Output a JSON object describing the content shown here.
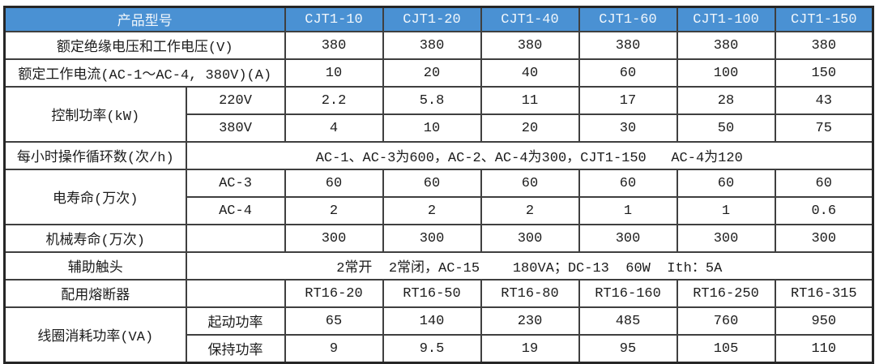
{
  "table": {
    "header": {
      "product_label": "产品型号",
      "models": [
        "CJT1-10",
        "CJT1-20",
        "CJT1-40",
        "CJT1-60",
        "CJT1-100",
        "CJT1-150"
      ]
    },
    "rows": {
      "insulation_voltage": {
        "label": "额定绝缘电压和工作电压(V)",
        "values": [
          "380",
          "380",
          "380",
          "380",
          "380",
          "380"
        ]
      },
      "rated_current": {
        "label": "额定工作电流(AC-1～AC-4, 380V)(A)",
        "values": [
          "10",
          "20",
          "40",
          "60",
          "100",
          "150"
        ]
      },
      "control_power": {
        "label": "控制功率(kW)",
        "sub": [
          {
            "name": "220V",
            "values": [
              "2.2",
              "5.8",
              "11",
              "17",
              "28",
              "43"
            ]
          },
          {
            "name": "380V",
            "values": [
              "4",
              "10",
              "20",
              "30",
              "50",
              "75"
            ]
          }
        ]
      },
      "cycles_per_hour": {
        "label": "每小时操作循环数(次/h)",
        "value": "AC-1、AC-3为600，AC-2、AC-4为300，CJT1-150   AC-4为120"
      },
      "electrical_life": {
        "label": "电寿命(万次)",
        "sub": [
          {
            "name": "AC-3",
            "values": [
              "60",
              "60",
              "60",
              "60",
              "60",
              "60"
            ]
          },
          {
            "name": "AC-4",
            "values": [
              "2",
              "2",
              "2",
              "1",
              "1",
              "0.6"
            ]
          }
        ]
      },
      "mechanical_life": {
        "label": "机械寿命(万次)",
        "sub_label": "",
        "values": [
          "300",
          "300",
          "300",
          "300",
          "300",
          "300"
        ]
      },
      "auxiliary_contacts": {
        "label": "辅助触头",
        "value": "2常开  2常闭，AC-15    180VA；DC-13  60W  Ith：5A"
      },
      "fuse": {
        "label": "配用熔断器",
        "sub_label": "",
        "values": [
          "RT16-20",
          "RT16-50",
          "RT16-80",
          "RT16-160",
          "RT16-250",
          "RT16-315"
        ]
      },
      "coil_power": {
        "label": "线圈消耗功率(VA)",
        "sub": [
          {
            "name": "起动功率",
            "values": [
              "65",
              "140",
              "230",
              "485",
              "760",
              "950"
            ]
          },
          {
            "name": "保持功率",
            "values": [
              "9",
              "9.5",
              "19",
              "95",
              "105",
              "110"
            ]
          }
        ]
      }
    }
  },
  "colors": {
    "header_bg": "#4A91D3",
    "header_text": "#F0F6FB",
    "border": "#3F3F3F",
    "body_text": "#1C1C1C",
    "background": "#FFFFFF"
  }
}
